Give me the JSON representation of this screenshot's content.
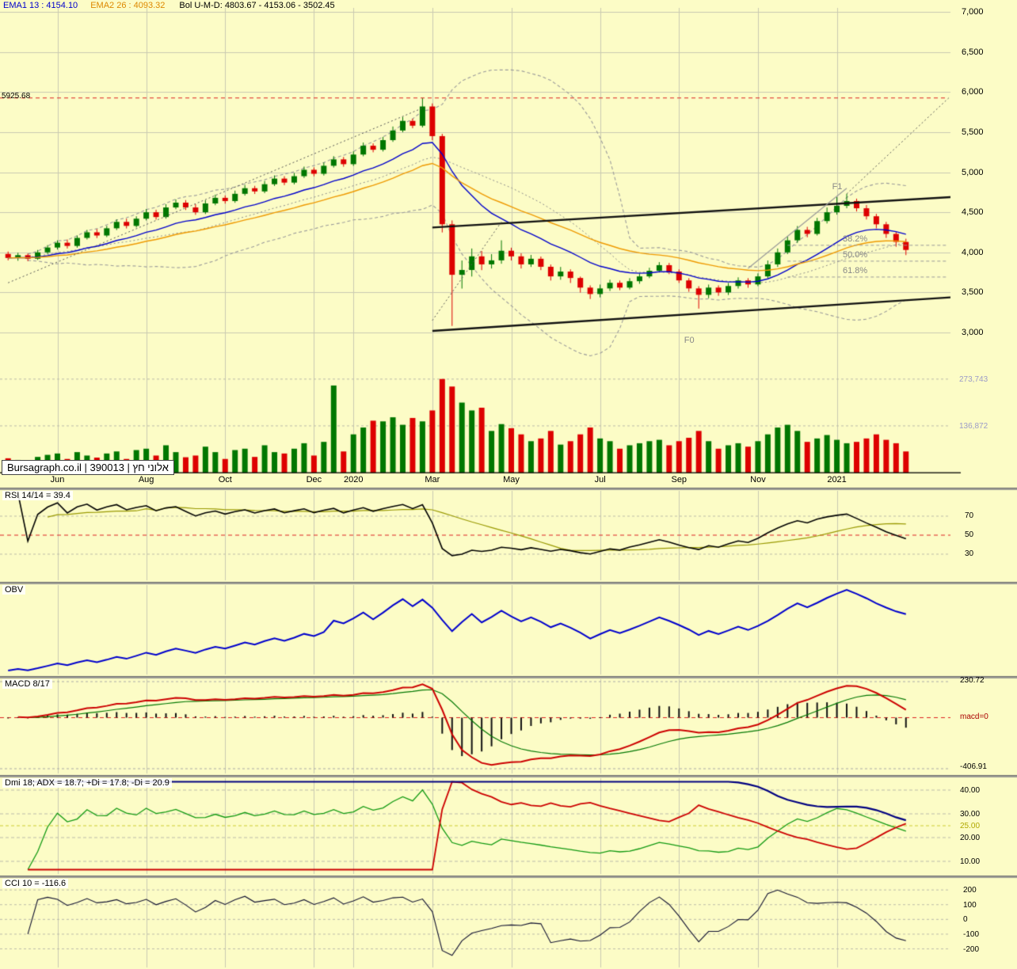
{
  "header": {
    "ema1": "EMA1 13 : 4154.10",
    "ema2": "EMA2 26 : 4093.32",
    "bol": "Bol U-M-D: 4803.67 - 4153.06 - 3502.45"
  },
  "watermark": "Bursagraph.co.il | 390013 | אלוני חץ",
  "colors": {
    "bg": "#FCFCC6",
    "grid": "#C9C9B0",
    "up": "#007700",
    "down": "#DD0000",
    "ema1": "#0000CC",
    "ema2": "#EE9900",
    "boll": "#9A9A9A",
    "alert": "#DD2222",
    "rsi": "#000000",
    "rsi_ma": "#999900",
    "obv": "#0000CC",
    "macd": "#CC0000",
    "macd_signal": "#007700",
    "hist": "#111111",
    "adx": "#000080",
    "plus_di": "#119911",
    "minus_di": "#CC0000",
    "cci": "#101030",
    "sep": "#999999",
    "axis_line": "#000000",
    "dash_grid": "#BBBBAA",
    "yellow_line": "#CCCC33"
  },
  "chart_data": {
    "type": "candlestick-multi-panel",
    "x_axis": {
      "labels": [
        {
          "text": "Jun",
          "i": 5
        },
        {
          "text": "Aug",
          "i": 14
        },
        {
          "text": "Oct",
          "i": 22
        },
        {
          "text": "Dec",
          "i": 31
        },
        {
          "text": "2020",
          "i": 35
        },
        {
          "text": "Mar",
          "i": 43
        },
        {
          "text": "May",
          "i": 51
        },
        {
          "text": "Jul",
          "i": 60
        },
        {
          "text": "Sep",
          "i": 68
        },
        {
          "text": "Nov",
          "i": 76
        },
        {
          "text": "2021",
          "i": 84
        }
      ]
    },
    "price_axis": {
      "min": 2820,
      "max": 7060,
      "ticks": [
        {
          "label": "7,000",
          "v": 7000
        },
        {
          "label": "6,500",
          "v": 6500
        },
        {
          "label": "6,000",
          "v": 6000
        },
        {
          "label": "5,500",
          "v": 5500
        },
        {
          "label": "5,000",
          "v": 5000
        },
        {
          "label": "4,500",
          "v": 4500
        },
        {
          "label": "4,000",
          "v": 4000
        },
        {
          "label": "3,500",
          "v": 3500
        },
        {
          "label": "3,000",
          "v": 3000
        }
      ]
    },
    "alert_line": {
      "label": "5925.68",
      "v": 5925.68
    },
    "volume_axis": {
      "max": 285000,
      "ticks": [
        {
          "label": "273,743",
          "v": 273743
        },
        {
          "label": "136,872",
          "v": 136872
        }
      ]
    },
    "candles": [
      [
        3980,
        4010,
        3900,
        3930,
        42
      ],
      [
        3930,
        3995,
        3895,
        3965,
        36
      ],
      [
        3965,
        3985,
        3890,
        3920,
        30
      ],
      [
        3920,
        4030,
        3905,
        4000,
        46
      ],
      [
        4000,
        4090,
        3980,
        4060,
        52
      ],
      [
        4060,
        4150,
        4035,
        4120,
        56
      ],
      [
        4120,
        4160,
        4048,
        4080,
        40
      ],
      [
        4080,
        4210,
        4058,
        4180,
        60
      ],
      [
        4180,
        4280,
        4160,
        4250,
        50
      ],
      [
        4250,
        4290,
        4178,
        4210,
        44
      ],
      [
        4210,
        4330,
        4190,
        4300,
        56
      ],
      [
        4300,
        4410,
        4278,
        4380,
        62
      ],
      [
        4380,
        4420,
        4298,
        4330,
        40
      ],
      [
        4330,
        4450,
        4310,
        4420,
        66
      ],
      [
        4420,
        4540,
        4398,
        4500,
        70
      ],
      [
        4500,
        4532,
        4408,
        4440,
        50
      ],
      [
        4440,
        4600,
        4420,
        4560,
        80
      ],
      [
        4560,
        4660,
        4538,
        4620,
        60
      ],
      [
        4620,
        4652,
        4528,
        4560,
        45
      ],
      [
        4560,
        4600,
        4468,
        4500,
        50
      ],
      [
        4500,
        4650,
        4478,
        4610,
        76
      ],
      [
        4610,
        4720,
        4588,
        4680,
        60
      ],
      [
        4680,
        4710,
        4608,
        4640,
        40
      ],
      [
        4640,
        4770,
        4618,
        4730,
        66
      ],
      [
        4730,
        4840,
        4708,
        4800,
        70
      ],
      [
        4800,
        4830,
        4728,
        4760,
        46
      ],
      [
        4760,
        4890,
        4738,
        4850,
        80
      ],
      [
        4850,
        4960,
        4828,
        4920,
        60
      ],
      [
        4920,
        4950,
        4838,
        4870,
        56
      ],
      [
        4870,
        4990,
        4848,
        4950,
        70
      ],
      [
        4950,
        5070,
        4928,
        5030,
        86
      ],
      [
        5030,
        5060,
        4948,
        4980,
        50
      ],
      [
        4980,
        5120,
        4958,
        5080,
        90
      ],
      [
        5080,
        5200,
        5058,
        5160,
        255
      ],
      [
        5160,
        5190,
        5068,
        5100,
        62
      ],
      [
        5100,
        5260,
        5078,
        5220,
        112
      ],
      [
        5220,
        5370,
        5198,
        5330,
        132
      ],
      [
        5330,
        5360,
        5248,
        5280,
        152
      ],
      [
        5280,
        5440,
        5258,
        5400,
        150
      ],
      [
        5400,
        5570,
        5378,
        5520,
        162
      ],
      [
        5520,
        5690,
        5498,
        5640,
        140
      ],
      [
        5640,
        5668,
        5548,
        5580,
        160
      ],
      [
        5580,
        5925,
        5558,
        5820,
        150
      ],
      [
        5820,
        5858,
        5398,
        5450,
        182
      ],
      [
        5450,
        5478,
        4248,
        4350,
        274
      ],
      [
        4350,
        4398,
        3082,
        3720,
        252
      ],
      [
        3720,
        3898,
        3548,
        3780,
        205
      ],
      [
        3780,
        4048,
        3698,
        3950,
        182
      ],
      [
        3950,
        4018,
        3778,
        3850,
        190
      ],
      [
        3850,
        3978,
        3798,
        3900,
        122
      ],
      [
        3900,
        4150,
        3858,
        4020,
        142
      ],
      [
        4020,
        4058,
        3898,
        3950,
        130
      ],
      [
        3950,
        3988,
        3798,
        3850,
        112
      ],
      [
        3850,
        3968,
        3818,
        3920,
        92
      ],
      [
        3920,
        3948,
        3778,
        3820,
        100
      ],
      [
        3820,
        3848,
        3648,
        3700,
        122
      ],
      [
        3700,
        3818,
        3658,
        3760,
        82
      ],
      [
        3760,
        3788,
        3618,
        3680,
        92
      ],
      [
        3680,
        3698,
        3498,
        3560,
        112
      ],
      [
        3560,
        3588,
        3418,
        3480,
        132
      ],
      [
        3480,
        3598,
        3438,
        3550,
        100
      ],
      [
        3550,
        3658,
        3518,
        3620,
        92
      ],
      [
        3620,
        3648,
        3528,
        3560,
        70
      ],
      [
        3560,
        3678,
        3538,
        3640,
        80
      ],
      [
        3640,
        3738,
        3608,
        3700,
        86
      ],
      [
        3700,
        3808,
        3678,
        3770,
        92
      ],
      [
        3770,
        3878,
        3748,
        3840,
        96
      ],
      [
        3840,
        3868,
        3728,
        3760,
        80
      ],
      [
        3760,
        3788,
        3618,
        3650,
        92
      ],
      [
        3650,
        3678,
        3508,
        3550,
        102
      ],
      [
        3550,
        3578,
        3298,
        3470,
        122
      ],
      [
        3470,
        3598,
        3428,
        3560,
        92
      ],
      [
        3560,
        3588,
        3458,
        3500,
        70
      ],
      [
        3500,
        3618,
        3468,
        3580,
        80
      ],
      [
        3580,
        3688,
        3548,
        3650,
        86
      ],
      [
        3650,
        3678,
        3558,
        3600,
        76
      ],
      [
        3600,
        3738,
        3578,
        3700,
        92
      ],
      [
        3700,
        3898,
        3678,
        3850,
        112
      ],
      [
        3850,
        4048,
        3818,
        4000,
        132
      ],
      [
        4000,
        4198,
        3978,
        4150,
        140
      ],
      [
        4150,
        4328,
        4118,
        4280,
        122
      ],
      [
        4280,
        4318,
        4188,
        4230,
        90
      ],
      [
        4230,
        4430,
        4210,
        4390,
        100
      ],
      [
        4390,
        4560,
        4360,
        4500,
        110
      ],
      [
        4500,
        4690,
        4470,
        4580,
        96
      ],
      [
        4580,
        4730,
        4550,
        4640,
        86
      ],
      [
        4640,
        4670,
        4510,
        4550,
        90
      ],
      [
        4550,
        4590,
        4410,
        4450,
        100
      ],
      [
        4450,
        4480,
        4300,
        4350,
        112
      ],
      [
        4350,
        4380,
        4180,
        4230,
        96
      ],
      [
        4230,
        4260,
        4070,
        4130,
        86
      ],
      [
        4130,
        4170,
        3965,
        4030,
        62
      ]
    ],
    "overlays": {
      "ema1_period": 13,
      "ema2_period": 26,
      "boll_period": 20,
      "boll_mult": 2,
      "trendlines": [
        {
          "i1": 43,
          "p1": 4310,
          "i2": 97,
          "p2": 4700,
          "c": "#111111",
          "w": 2.4
        },
        {
          "i1": 43,
          "p1": 3020,
          "i2": 97,
          "p2": 3450,
          "c": "#111111",
          "w": 2.4
        },
        {
          "i1": 75,
          "p1": 3800,
          "i2": 85,
          "p2": 4800,
          "c": "#999999",
          "w": 1.2
        },
        {
          "i1": 0,
          "p1": 3620,
          "i2": 42,
          "p2": 5800,
          "c": "#555555",
          "w": 1,
          "d": [
            2,
            3
          ]
        },
        {
          "i1": 43,
          "p1": 3150,
          "i2": 50,
          "p2": 4380,
          "c": "#555555",
          "w": 1,
          "d": [
            2,
            3
          ]
        },
        {
          "i1": 85,
          "p1": 4730,
          "i2": 99,
          "p2": 6350,
          "c": "#555555",
          "w": 1,
          "d": [
            2,
            3
          ]
        }
      ],
      "fib": {
        "from_i": 79,
        "levels": [
          {
            "label": "38.2%",
            "v": 4088
          },
          {
            "label": "50.0%",
            "v": 3890
          },
          {
            "label": "61.8%",
            "v": 3692
          }
        ]
      },
      "anchors": [
        {
          "label": "F1",
          "i": 84,
          "v": 4820
        },
        {
          "label": "F0",
          "i": 69,
          "v": 2900
        }
      ]
    },
    "panels": {
      "rsi": {
        "label": "RSI 14/14 = 39.4",
        "period": 14,
        "smooth": 14,
        "last": 39.4,
        "range": [
          5,
          95
        ],
        "ticks": [
          {
            "label": "70",
            "v": 70
          },
          {
            "label": "50",
            "v": 50,
            "red": true
          },
          {
            "label": "30",
            "v": 30
          }
        ]
      },
      "obv": {
        "label": "OBV"
      },
      "macd": {
        "label": "MACD 8/17",
        "fast": 8,
        "slow": 17,
        "signal": 9,
        "tick_top": "230.72",
        "tick_zero": "macd=0",
        "tick_bottom": "-406.91"
      },
      "dmi": {
        "label": "Dmi 18; ADX = 18.7; +Di = 17.8; -Di = 20.9",
        "period": 18,
        "adx_last": 18.7,
        "plus_di_last": 17.8,
        "minus_di_last": 20.9,
        "range": [
          6,
          44
        ],
        "ticks": [
          {
            "label": "40.00",
            "v": 40
          },
          {
            "label": "30.00",
            "v": 30
          },
          {
            "label": "25.00",
            "v": 25,
            "yellow": true
          },
          {
            "label": "20.00",
            "v": 20
          },
          {
            "label": "10.00",
            "v": 10
          }
        ]
      },
      "cci": {
        "label": "CCI 10 = -116.6",
        "period": 10,
        "last": -116.6,
        "range": [
          -315,
          265
        ],
        "ticks": [
          {
            "label": "200",
            "v": 200
          },
          {
            "label": "100",
            "v": 100
          },
          {
            "label": "0",
            "v": 0
          },
          {
            "label": "-100",
            "v": -100
          },
          {
            "label": "-200",
            "v": -200
          }
        ]
      }
    }
  }
}
